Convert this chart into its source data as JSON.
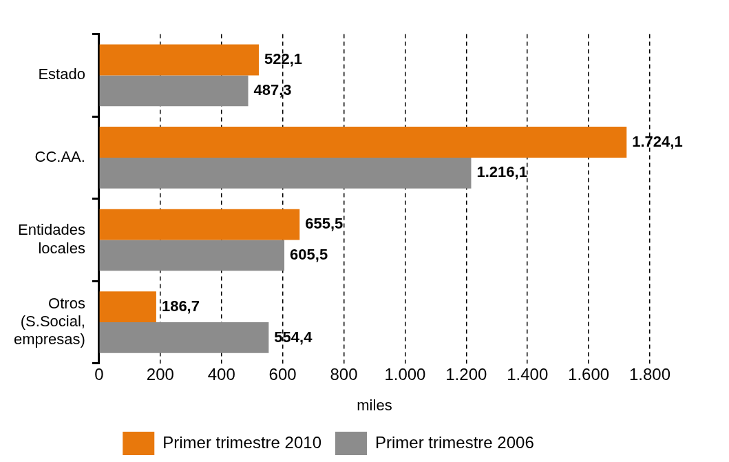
{
  "chart_data": {
    "type": "bar",
    "orientation": "horizontal",
    "xlabel": "miles",
    "categories": [
      "Estado",
      "CC.AA.",
      "Entidades locales",
      "Otros (S.Social, empresas)"
    ],
    "series": [
      {
        "name": "Primer trimestre 2010",
        "color": "#e8780c",
        "values": [
          522.1,
          1724.1,
          655.5,
          186.7
        ],
        "value_labels": [
          "522,1",
          "1.724,1",
          "655,5",
          "186,7"
        ]
      },
      {
        "name": "Primer trimestre 2006",
        "color": "#8c8c8c",
        "values": [
          487.3,
          1216.1,
          605.5,
          554.4
        ],
        "value_labels": [
          "487,3",
          "1.216,1",
          "605,5",
          "554,4"
        ]
      }
    ],
    "xlim": [
      0,
      1800
    ],
    "xticks": [
      0,
      200,
      400,
      600,
      800,
      {
        "value": 1000,
        "label": "1.000"
      },
      {
        "value": 1200,
        "label": "1.200"
      },
      {
        "value": 1400,
        "label": "1.400"
      },
      {
        "value": 1600,
        "label": "1.600"
      },
      {
        "value": 1800,
        "label": "1.800"
      }
    ],
    "grid": "x",
    "legend": "bottom"
  }
}
